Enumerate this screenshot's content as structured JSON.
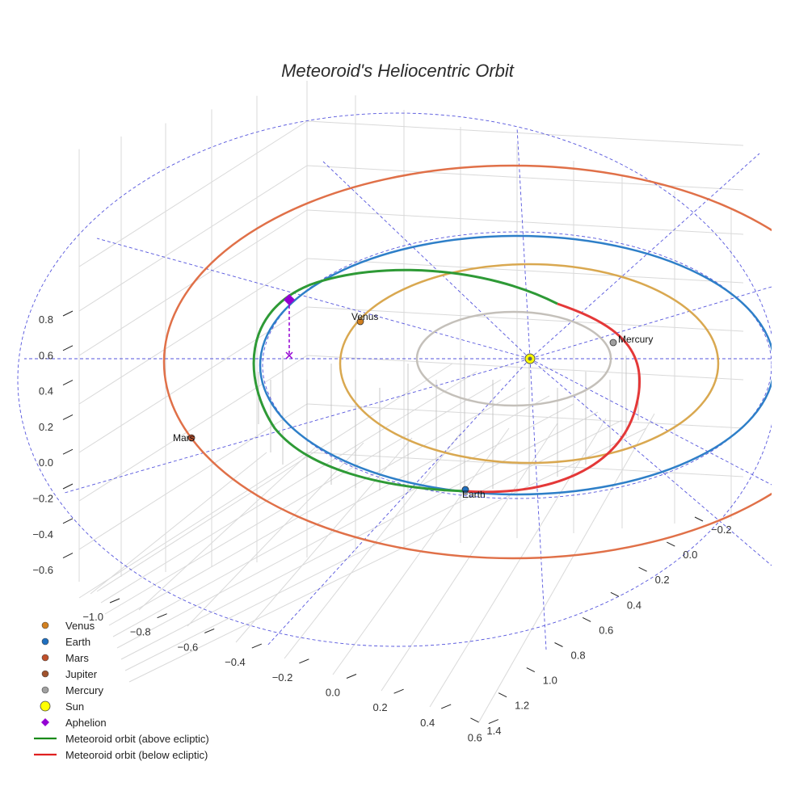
{
  "chart_data": {
    "type": "scatter3d",
    "title": "Meteoroid's Heliocentric Orbit",
    "axes": {
      "z_ticks": [
        0.8,
        0.6,
        0.4,
        0.2,
        0.0,
        -0.2,
        -0.4,
        -0.6
      ],
      "z_tick_labels": [
        "0.8",
        "0.6",
        "0.4",
        "0.2",
        "0.0",
        "−0.2",
        "−0.4",
        "−0.6"
      ],
      "x_ticks": [
        -1.0,
        -0.8,
        -0.6,
        -0.4,
        -0.2,
        0.0,
        0.2,
        0.4,
        0.6
      ],
      "x_tick_labels": [
        "−1.0",
        "−0.8",
        "−0.6",
        "−0.4",
        "−0.2",
        "0.0",
        "0.2",
        "0.4",
        "0.6"
      ],
      "y_ticks": [
        -0.2,
        0.0,
        0.2,
        0.4,
        0.6,
        0.8,
        1.0,
        1.2,
        1.4
      ],
      "y_tick_labels": [
        "−0.2",
        "0.0",
        "0.2",
        "0.4",
        "0.6",
        "0.8",
        "1.0",
        "1.2",
        "1.4"
      ],
      "grid": true
    },
    "planets": [
      {
        "name": "Venus",
        "color": "#d2801f",
        "label": "Venus"
      },
      {
        "name": "Earth",
        "color": "#1f6fbf",
        "label": "Earth"
      },
      {
        "name": "Mars",
        "color": "#c0502a",
        "label": "Mars"
      },
      {
        "name": "Mercury",
        "color": "#a0a0a0",
        "label": "Mercury"
      }
    ],
    "orbits": [
      {
        "name": "Mercury orbit",
        "color": "#c4c0ba"
      },
      {
        "name": "Venus orbit",
        "color": "#d9a850"
      },
      {
        "name": "Earth orbit",
        "color": "#2e7fc8"
      },
      {
        "name": "Mars orbit",
        "color": "#e07048"
      },
      {
        "name": "Meteoroid orbit (above ecliptic)",
        "color": "#2e9a36"
      },
      {
        "name": "Meteoroid orbit (below ecliptic)",
        "color": "#e43838"
      }
    ],
    "legend": [
      {
        "label": "Venus",
        "marker": "circle",
        "color": "#d2801f"
      },
      {
        "label": "Earth",
        "marker": "circle",
        "color": "#1f6fbf"
      },
      {
        "label": "Mars",
        "marker": "circle",
        "color": "#c0502a"
      },
      {
        "label": "Jupiter",
        "marker": "circle",
        "color": "#a0522d"
      },
      {
        "label": "Mercury",
        "marker": "circle",
        "color": "#a0a0a0"
      },
      {
        "label": "Sun",
        "marker": "sun",
        "color": "#ffff00"
      },
      {
        "label": "Aphelion",
        "marker": "diamond",
        "color": "#9400d3"
      },
      {
        "label": "Meteoroid orbit (above ecliptic)",
        "marker": "line",
        "color": "#1a8a1a"
      },
      {
        "label": "Meteoroid orbit (below ecliptic)",
        "marker": "line",
        "color": "#e02020"
      }
    ],
    "legend_position": "bottom-left",
    "ecliptic_grid_color": "#5555dd"
  }
}
